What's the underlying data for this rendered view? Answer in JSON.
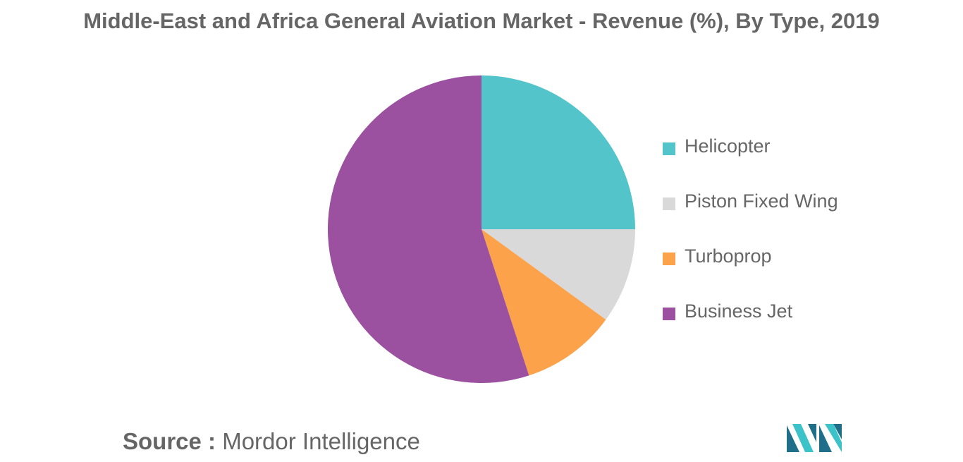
{
  "title": "Middle-East and Africa General Aviation Market - Revenue (%), By Type, 2019",
  "chart_data": {
    "type": "pie",
    "title": "Middle-East and Africa General Aviation Market - Revenue (%), By Type, 2019",
    "labels": [
      "Helicopter",
      "Piston Fixed Wing",
      "Turboprop",
      "Business Jet"
    ],
    "values": [
      25,
      10,
      10,
      55
    ],
    "colors": [
      "#52c4ca",
      "#d9d9d9",
      "#fba24b",
      "#9b51a0"
    ],
    "legend_position": "right"
  },
  "source": {
    "label": "Source :",
    "text": "Mordor Intelligence"
  },
  "logo": {
    "icon": "mordor-intelligence-logo",
    "colors": [
      "#1f6f8b",
      "#3cc2c9"
    ]
  }
}
